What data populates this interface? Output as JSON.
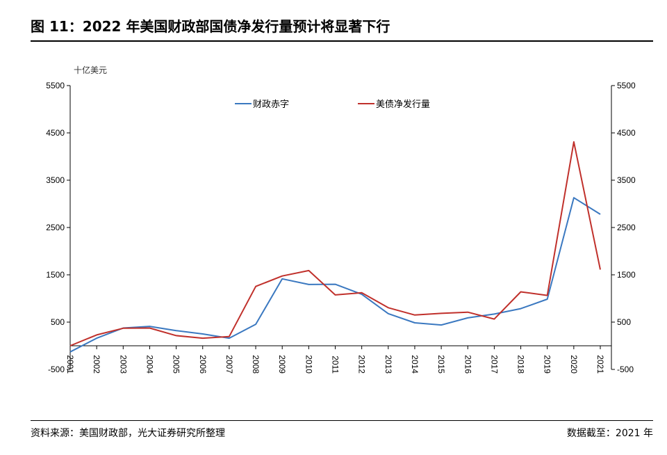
{
  "header": {
    "title": "图 11：2022 年美国财政部国债净发行量预计将显著下行"
  },
  "footer": {
    "source": "资料来源：美国财政部，光大证券研究所整理",
    "as_of": "数据截至：2021 年"
  },
  "chart_data": {
    "type": "line",
    "unit_label": "十亿美元",
    "x": [
      "2001",
      "2002",
      "2003",
      "2004",
      "2005",
      "2006",
      "2007",
      "2008",
      "2009",
      "2010",
      "2011",
      "2012",
      "2013",
      "2014",
      "2015",
      "2016",
      "2017",
      "2018",
      "2019",
      "2020",
      "2021"
    ],
    "series": [
      {
        "name": "财政赤字",
        "color": "#3a78c0",
        "values": [
          -130,
          160,
          375,
          410,
          320,
          250,
          160,
          455,
          1415,
          1295,
          1300,
          1090,
          680,
          485,
          440,
          590,
          670,
          785,
          985,
          3130,
          2780
        ]
      },
      {
        "name": "美债净发行量",
        "color": "#c0302b",
        "values": [
          0,
          230,
          370,
          375,
          215,
          160,
          195,
          1255,
          1475,
          1590,
          1075,
          1120,
          805,
          650,
          685,
          710,
          565,
          1140,
          1065,
          4310,
          1610
        ]
      }
    ],
    "yticks": [
      5500,
      4500,
      3500,
      2500,
      1500,
      500,
      -500
    ],
    "ylim": [
      -500,
      5500
    ],
    "legend": "top-center"
  }
}
